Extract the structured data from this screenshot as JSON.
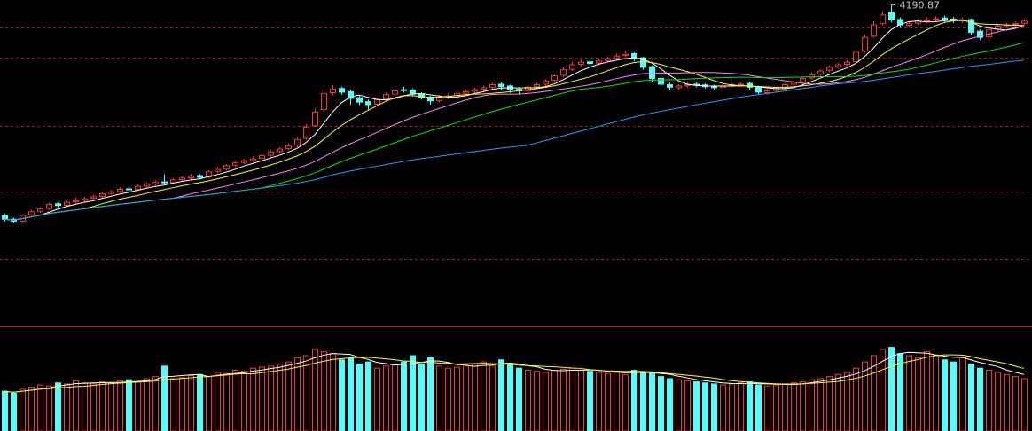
{
  "chart_data": {
    "type": "candlestick",
    "open": [
      3345,
      3330,
      3322,
      3348,
      3362,
      3373,
      3392,
      3386,
      3400,
      3406,
      3414,
      3422,
      3434,
      3441,
      3452,
      3449,
      3463,
      3471,
      3480,
      3477,
      3489,
      3496,
      3505,
      3500,
      3522,
      3532,
      3547,
      3558,
      3566,
      3574,
      3587,
      3602,
      3614,
      3628,
      3655,
      3705,
      3770,
      3838,
      3855,
      3842,
      3818,
      3802,
      3792,
      3812,
      3832,
      3850,
      3848,
      3834,
      3820,
      3806,
      3822,
      3826,
      3836,
      3844,
      3852,
      3860,
      3872,
      3865,
      3852,
      3846,
      3862,
      3872,
      3888,
      3908,
      3932,
      3952,
      3962,
      3957,
      3967,
      3978,
      3987,
      3995,
      3978,
      3942,
      3895,
      3870,
      3858,
      3866,
      3872,
      3869,
      3864,
      3860,
      3866,
      3871,
      3875,
      3862,
      3838,
      3847,
      3857,
      3872,
      3882,
      3897,
      3912,
      3928,
      3942,
      3952,
      3962,
      4005,
      4065,
      4115,
      4160,
      4132,
      4108,
      4117,
      4127,
      4133,
      4138,
      4134,
      4126,
      4132,
      4085,
      4062,
      4092,
      4107,
      4112,
      4117
    ],
    "high": [
      3352,
      3336,
      3350,
      3368,
      3378,
      3396,
      3398,
      3404,
      3418,
      3420,
      3428,
      3440,
      3446,
      3458,
      3460,
      3470,
      3478,
      3486,
      3510,
      3494,
      3502,
      3512,
      3512,
      3526,
      3540,
      3552,
      3564,
      3572,
      3582,
      3592,
      3608,
      3620,
      3634,
      3660,
      3712,
      3775,
      3850,
      3868,
      3862,
      3850,
      3825,
      3810,
      3818,
      3838,
      3855,
      3862,
      3855,
      3840,
      3825,
      3828,
      3835,
      3842,
      3850,
      3858,
      3866,
      3880,
      3880,
      3870,
      3860,
      3868,
      3878,
      3892,
      3912,
      3940,
      3962,
      3972,
      3975,
      3975,
      3984,
      3995,
      4005,
      4000,
      3982,
      3948,
      3900,
      3878,
      3872,
      3878,
      3880,
      3875,
      3870,
      3872,
      3878,
      3880,
      3882,
      3866,
      3852,
      3862,
      3876,
      3888,
      3902,
      3918,
      3932,
      3948,
      3958,
      3968,
      4010,
      4072,
      4125,
      4165,
      4190.87,
      4140,
      4124,
      4135,
      4140,
      4145,
      4148,
      4142,
      4140,
      4135,
      4092,
      4098,
      4112,
      4118,
      4124,
      4132
    ],
    "low": [
      3322,
      3315,
      3318,
      3342,
      3355,
      3368,
      3378,
      3380,
      3394,
      3398,
      3408,
      3416,
      3428,
      3436,
      3440,
      3444,
      3456,
      3465,
      3468,
      3470,
      3482,
      3490,
      3490,
      3494,
      3516,
      3526,
      3540,
      3550,
      3560,
      3568,
      3580,
      3595,
      3606,
      3620,
      3648,
      3700,
      3762,
      3828,
      3830,
      3790,
      3788,
      3770,
      3782,
      3805,
      3825,
      3838,
      3825,
      3810,
      3790,
      3798,
      3812,
      3818,
      3830,
      3836,
      3845,
      3852,
      3850,
      3838,
      3830,
      3838,
      3855,
      3864,
      3880,
      3900,
      3925,
      3945,
      3945,
      3948,
      3960,
      3970,
      3978,
      3965,
      3930,
      3880,
      3860,
      3850,
      3850,
      3858,
      3860,
      3855,
      3850,
      3852,
      3860,
      3862,
      3850,
      3832,
      3830,
      3840,
      3850,
      3865,
      3875,
      3890,
      3905,
      3920,
      3935,
      3945,
      3955,
      3998,
      4058,
      4108,
      4120,
      4100,
      4100,
      4110,
      4118,
      4125,
      4122,
      4118,
      4118,
      4068,
      4050,
      4055,
      4085,
      4100,
      4105,
      4110
    ],
    "close": [
      3330,
      3322,
      3345,
      3360,
      3372,
      3390,
      3385,
      3398,
      3405,
      3412,
      3420,
      3432,
      3440,
      3450,
      3448,
      3462,
      3470,
      3478,
      3476,
      3488,
      3495,
      3502,
      3498,
      3520,
      3530,
      3545,
      3556,
      3565,
      3572,
      3585,
      3600,
      3612,
      3625,
      3650,
      3700,
      3760,
      3835,
      3852,
      3840,
      3815,
      3800,
      3790,
      3810,
      3830,
      3845,
      3848,
      3832,
      3818,
      3805,
      3820,
      3825,
      3835,
      3842,
      3850,
      3858,
      3870,
      3862,
      3850,
      3845,
      3860,
      3870,
      3885,
      3905,
      3930,
      3950,
      3960,
      3955,
      3965,
      3975,
      3985,
      3992,
      3975,
      3940,
      3895,
      3872,
      3860,
      3865,
      3870,
      3868,
      3862,
      3858,
      3865,
      3870,
      3872,
      3860,
      3840,
      3845,
      3855,
      3870,
      3880,
      3895,
      3910,
      3925,
      3940,
      3950,
      3960,
      4000,
      4060,
      4110,
      4150,
      4130,
      4110,
      4115,
      4125,
      4130,
      4135,
      4132,
      4128,
      4130,
      4080,
      4060,
      4090,
      4105,
      4110,
      4115,
      4125
    ],
    "volume": [
      1900,
      1800,
      2000,
      2100,
      2200,
      2150,
      2300,
      2250,
      2400,
      2300,
      2250,
      2350,
      2300,
      2400,
      2450,
      2350,
      2500,
      2600,
      3100,
      2500,
      2550,
      2650,
      2700,
      2600,
      2800,
      2750,
      2900,
      2850,
      3000,
      3050,
      3100,
      3200,
      3300,
      3500,
      3600,
      3900,
      3800,
      3700,
      3400,
      3500,
      3200,
      3300,
      3000,
      3100,
      3150,
      3300,
      3600,
      3200,
      3500,
      3100,
      3000,
      3050,
      3100,
      3200,
      3300,
      3100,
      3400,
      3200,
      3000,
      2900,
      2850,
      2800,
      2900,
      2950,
      3000,
      2900,
      2850,
      2800,
      2750,
      2800,
      2700,
      2900,
      2800,
      2750,
      2600,
      2500,
      2450,
      2400,
      2350,
      2300,
      2250,
      2200,
      2250,
      2300,
      2350,
      2200,
      2150,
      2200,
      2250,
      2300,
      2350,
      2450,
      2500,
      2600,
      2700,
      2800,
      3000,
      3300,
      3600,
      3900,
      4000,
      3700,
      3600,
      3500,
      3800,
      3600,
      3400,
      3300,
      3500,
      3200,
      3000,
      2900,
      2800,
      2700,
      2600,
      2500
    ],
    "ylim": [
      2900,
      4210
    ],
    "vlim": [
      0,
      5000
    ],
    "hlines": [
      4100,
      3979,
      3704,
      3441,
      3170
    ],
    "up_color": "#ff3232",
    "down_color": "#54fcfc",
    "ma_colors": [
      "#ffffff",
      "#ffff00",
      "#ff80ff",
      "#00e600",
      "#1ea0ff"
    ],
    "vol_ma_colors": [
      "#ffffff",
      "#ffff00"
    ]
  }
}
